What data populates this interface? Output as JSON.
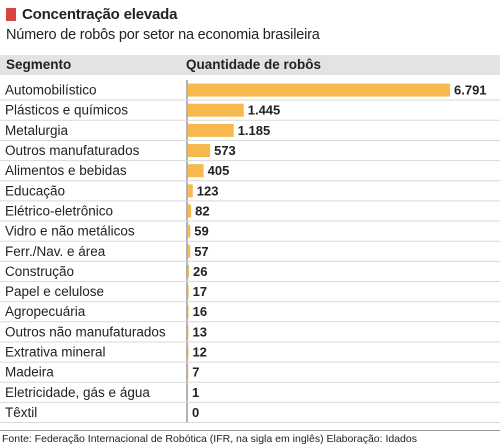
{
  "title": "Concentração elevada",
  "subtitle": "Número de robôs por setor na economia brasileira",
  "columns": {
    "segment": "Segmento",
    "quantity": "Quantidade de robôs"
  },
  "source": "Fonte: Federação Internacional de Robótica (IFR, na sigla em inglês) Elaboração: Idados",
  "colors": {
    "bar": "#f7b94d",
    "accent": "#d64541",
    "header_bg": "#e3e3e3",
    "row_divider": "#d9d9d9",
    "axis": "#666666"
  },
  "chart_data": {
    "type": "bar",
    "orientation": "horizontal",
    "categories": [
      "Automobilístico",
      "Plásticos e químicos",
      "Metalurgia",
      "Outros manufaturados",
      "Alimentos e bebidas",
      "Educação",
      "Elétrico-eletrônico",
      "Vidro e não metálicos",
      "Ferr./Nav. e área",
      "Construção",
      "Papel e celulose",
      "Agropecuária",
      "Outros não manufaturados",
      "Extrativa mineral",
      "Madeira",
      "Eletricidade, gás e água",
      "Têxtil"
    ],
    "values": [
      6791,
      1445,
      1185,
      573,
      405,
      123,
      82,
      59,
      57,
      26,
      17,
      16,
      13,
      12,
      7,
      1,
      0
    ],
    "value_labels": [
      "6.791",
      "1.445",
      "1.185",
      "573",
      "405",
      "123",
      "82",
      "59",
      "57",
      "26",
      "17",
      "16",
      "13",
      "12",
      "7",
      "1",
      "0"
    ],
    "xlim": [
      0,
      6791
    ],
    "grid": false,
    "legend": "none"
  }
}
